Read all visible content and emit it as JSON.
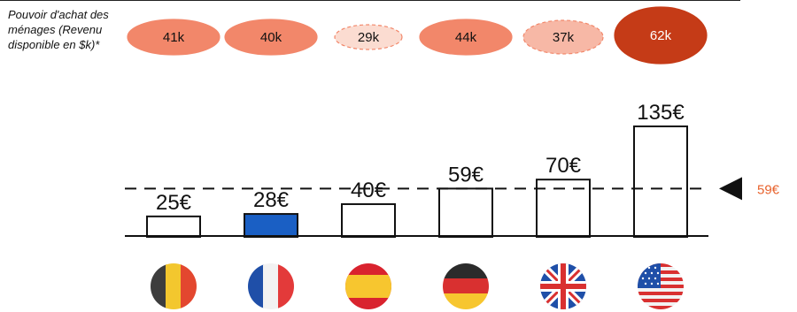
{
  "purchase_power": {
    "label": "Pouvoir d'achat des ménages (Revenu disponible en $k)*",
    "values": [
      "41k",
      "40k",
      "29k",
      "44k",
      "37k",
      "62k"
    ]
  },
  "reference": {
    "label": "59€",
    "value": 59,
    "color": "#e8622c"
  },
  "colors": {
    "highlight_bar": "#1a5fc4",
    "bubble_dark": "#c53b17",
    "bubble_mid": "#f2876a",
    "bubble_light": "#f7b8a6",
    "bubble_pale": "#fbdcd1"
  },
  "chart_data": {
    "type": "bar",
    "categories": [
      "Belgique",
      "France",
      "Espagne",
      "Allemagne",
      "Royaume-Uni",
      "États-Unis"
    ],
    "values": [
      25,
      28,
      40,
      59,
      70,
      135
    ],
    "labels": [
      "25€",
      "28€",
      "40€",
      "59€",
      "70€",
      "135€"
    ],
    "highlight_index": 1,
    "reference_line": 59,
    "reference_label": "59€",
    "ylim": [
      0,
      135
    ],
    "purchase_power_k": [
      41,
      40,
      29,
      44,
      37,
      62
    ],
    "purchase_power_labels": [
      "41k",
      "40k",
      "29k",
      "44k",
      "37k",
      "62k"
    ],
    "grid": false
  }
}
